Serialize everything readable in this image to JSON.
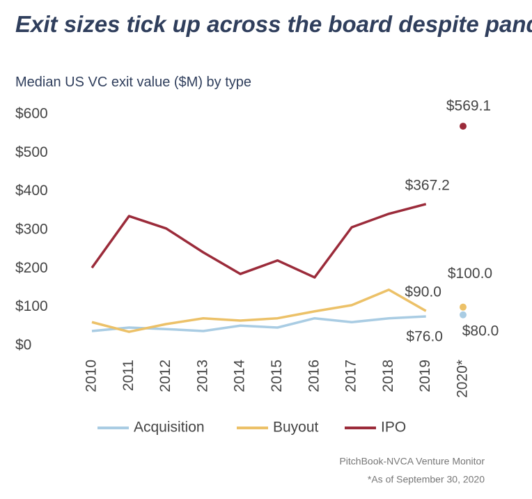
{
  "chart_data": {
    "type": "line",
    "title": "Exit sizes tick up across the board despite pandemic",
    "subtitle": "Median US VC exit value ($M) by type",
    "categories": [
      "2010",
      "2011",
      "2012",
      "2013",
      "2014",
      "2015",
      "2016",
      "2017",
      "2018",
      "2019",
      "2020*"
    ],
    "series": [
      {
        "name": "Acquisition",
        "color": "#a9cce3",
        "values": [
          38,
          47,
          43,
          38,
          52,
          47,
          71,
          61,
          71,
          76,
          80
        ],
        "value_labels": [
          null,
          null,
          null,
          null,
          null,
          null,
          null,
          null,
          null,
          "$76.0",
          "$80.0"
        ]
      },
      {
        "name": "Buyout",
        "color": "#ecc168",
        "values": [
          61,
          36,
          56,
          71,
          65,
          71,
          89,
          105,
          145,
          90,
          100
        ],
        "value_labels": [
          null,
          null,
          null,
          null,
          null,
          null,
          null,
          null,
          null,
          "$90.0",
          "$100.0"
        ]
      },
      {
        "name": "IPO",
        "color": "#9b2b3a",
        "values": [
          202,
          336,
          304,
          242,
          186,
          221,
          177,
          307,
          342,
          367.2,
          569.1
        ],
        "value_labels": [
          null,
          null,
          null,
          null,
          null,
          null,
          null,
          null,
          null,
          "$367.2",
          "$569.1"
        ]
      }
    ],
    "ylim": [
      0,
      600
    ],
    "yticks": [
      {
        "value": 0,
        "label": "$0"
      },
      {
        "value": 100,
        "label": "$100"
      },
      {
        "value": 200,
        "label": "$200"
      },
      {
        "value": 300,
        "label": "$300"
      },
      {
        "value": 400,
        "label": "$400"
      },
      {
        "value": 500,
        "label": "$500"
      },
      {
        "value": 600,
        "label": "$600"
      }
    ],
    "grid": false,
    "last_point_marker_only": true,
    "legend": "bottom",
    "source": "PitchBook-NVCA Venture Monitor",
    "note": "*As of September 30, 2020"
  }
}
